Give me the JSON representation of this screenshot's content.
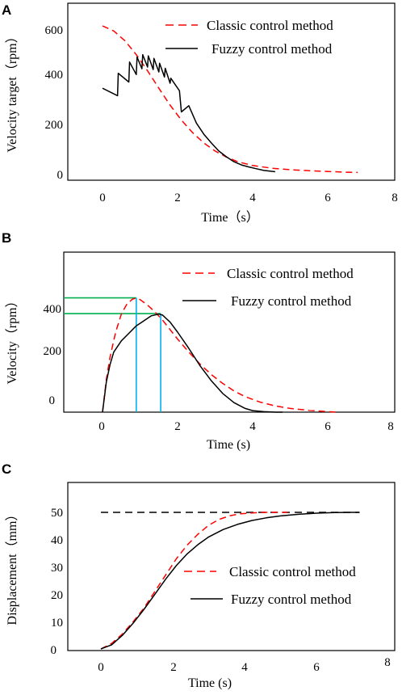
{
  "figure": {
    "panels": [
      {
        "id": "A",
        "letter": "A",
        "xlabel": "Time（s）",
        "ylabel": "Velocity target（rpm）",
        "xticks": [
          "0",
          "2",
          "4",
          "6",
          "8"
        ],
        "yticks": [
          "0",
          "200",
          "400",
          "600"
        ],
        "legend": [
          "Classic control method",
          "Fuzzy control method"
        ]
      },
      {
        "id": "B",
        "letter": "B",
        "xlabel": "Time (s)",
        "ylabel": "Velocity（rpm）",
        "xticks": [
          "0",
          "2",
          "4",
          "6",
          "8"
        ],
        "yticks": [
          "0",
          "200",
          "400"
        ],
        "legend": [
          "Classic control method",
          "Fuzzy control method"
        ]
      },
      {
        "id": "C",
        "letter": "C",
        "xlabel": "Time (s)",
        "ylabel": "Displacement（mm）",
        "xticks": [
          "0",
          "2",
          "4",
          "6",
          "8"
        ],
        "yticks": [
          "0",
          "10",
          "20",
          "30",
          "40",
          "50"
        ],
        "legend": [
          "Classic control method",
          "Fuzzy control method"
        ]
      }
    ]
  },
  "colors": {
    "classic": "#ff0000",
    "fuzzy": "#000000",
    "marker_green": "#00b050",
    "marker_cyan": "#00b0f0"
  },
  "chart_data": [
    {
      "type": "line",
      "xlabel": "Time（s）",
      "ylabel": "Velocity target（rpm）",
      "xlim": [
        -0.9,
        8
      ],
      "ylim": [
        -10,
        640
      ],
      "legend_position": "top-right",
      "series": [
        {
          "name": "Classic control method",
          "style": "dashed",
          "x": [
            0,
            0.3,
            0.6,
            0.9,
            1.2,
            1.5,
            1.8,
            2.1,
            2.4,
            2.7,
            3.0,
            3.3,
            3.6,
            4.0,
            4.5,
            5.0,
            5.5,
            6.0,
            6.5,
            6.8
          ],
          "y": [
            590,
            570,
            530,
            475,
            410,
            340,
            272,
            212,
            162,
            120,
            88,
            64,
            45,
            30,
            19,
            13,
            9,
            6,
            3,
            2
          ]
        },
        {
          "name": "Fuzzy control method",
          "style": "solid",
          "x": [
            0,
            0.4,
            0.42,
            0.7,
            0.72,
            0.9,
            0.92,
            1.05,
            1.07,
            1.2,
            1.22,
            1.35,
            1.37,
            1.5,
            1.52,
            1.65,
            1.67,
            1.8,
            1.82,
            2.05,
            2.1,
            2.3,
            2.5,
            2.7,
            2.9,
            3.1,
            3.3,
            3.5,
            3.7,
            3.9,
            4.1,
            4.3,
            4.6
          ],
          "y": [
            340,
            310,
            400,
            365,
            445,
            395,
            465,
            418,
            475,
            425,
            470,
            415,
            460,
            405,
            440,
            385,
            420,
            360,
            380,
            330,
            245,
            270,
            200,
            155,
            120,
            88,
            65,
            45,
            32,
            24,
            17,
            10,
            5
          ]
        }
      ]
    },
    {
      "type": "line",
      "xlabel": "Time (s)",
      "ylabel": "Velocity（rpm）",
      "xlim": [
        -0.9,
        8
      ],
      "ylim": [
        -20,
        520
      ],
      "legend_position": "top-right",
      "series": [
        {
          "name": "Classic control method",
          "style": "dashed",
          "x": [
            0,
            0.1,
            0.2,
            0.35,
            0.5,
            0.65,
            0.8,
            0.9,
            1.0,
            1.2,
            1.4,
            1.6,
            1.8,
            2.0,
            2.3,
            2.6,
            2.9,
            3.2,
            3.5,
            3.8,
            4.2,
            4.6,
            5.0,
            5.5,
            6.0,
            6.3
          ],
          "y": [
            0,
            130,
            220,
            320,
            392,
            432,
            452,
            456,
            450,
            428,
            400,
            368,
            330,
            292,
            240,
            192,
            150,
            115,
            85,
            62,
            40,
            25,
            15,
            7,
            2,
            0
          ]
        },
        {
          "name": "Fuzzy control method",
          "style": "solid",
          "x": [
            0,
            0.1,
            0.2,
            0.3,
            0.5,
            0.7,
            0.9,
            1.1,
            1.3,
            1.5,
            1.6,
            1.8,
            2.0,
            2.3,
            2.6,
            2.9,
            3.2,
            3.5,
            3.8,
            4.0,
            4.3,
            4.6,
            4.8
          ],
          "y": [
            0,
            120,
            190,
            240,
            285,
            315,
            345,
            365,
            385,
            392,
            388,
            360,
            320,
            255,
            185,
            125,
            75,
            38,
            15,
            6,
            2,
            0,
            0
          ]
        }
      ],
      "markers": {
        "hlines_y": [
          457,
          394
        ],
        "vlines_x": [
          0.9,
          1.55
        ]
      }
    },
    {
      "type": "line",
      "xlabel": "Time (s)",
      "ylabel": "Displacement（mm）",
      "xlim": [
        -0.9,
        8
      ],
      "ylim": [
        0,
        55
      ],
      "legend_position": "center-right",
      "reference_line_y": 50,
      "series": [
        {
          "name": "Classic control method",
          "style": "dashed",
          "x": [
            0,
            0.3,
            0.6,
            0.9,
            1.2,
            1.5,
            1.8,
            2.1,
            2.4,
            2.7,
            3.0,
            3.3,
            3.6,
            3.9,
            4.2,
            4.5,
            4.8,
            5.2
          ],
          "y": [
            0,
            2,
            5.5,
            10,
            15,
            21,
            27,
            33,
            38,
            42,
            45.3,
            47.5,
            48.8,
            49.5,
            49.8,
            50,
            50,
            50
          ]
        },
        {
          "name": "Fuzzy control method",
          "style": "solid",
          "x": [
            0,
            0.3,
            0.6,
            0.9,
            1.2,
            1.5,
            1.8,
            2.1,
            2.4,
            2.7,
            3.0,
            3.4,
            3.8,
            4.2,
            4.6,
            5.0,
            5.5,
            6.0,
            6.5,
            7.0,
            7.2
          ],
          "y": [
            0,
            1.5,
            5,
            9.5,
            14.5,
            20,
            25.5,
            30.5,
            34.8,
            38.2,
            41,
            43.7,
            45.6,
            47,
            48,
            48.7,
            49.3,
            49.7,
            49.9,
            50,
            50
          ]
        }
      ]
    }
  ]
}
